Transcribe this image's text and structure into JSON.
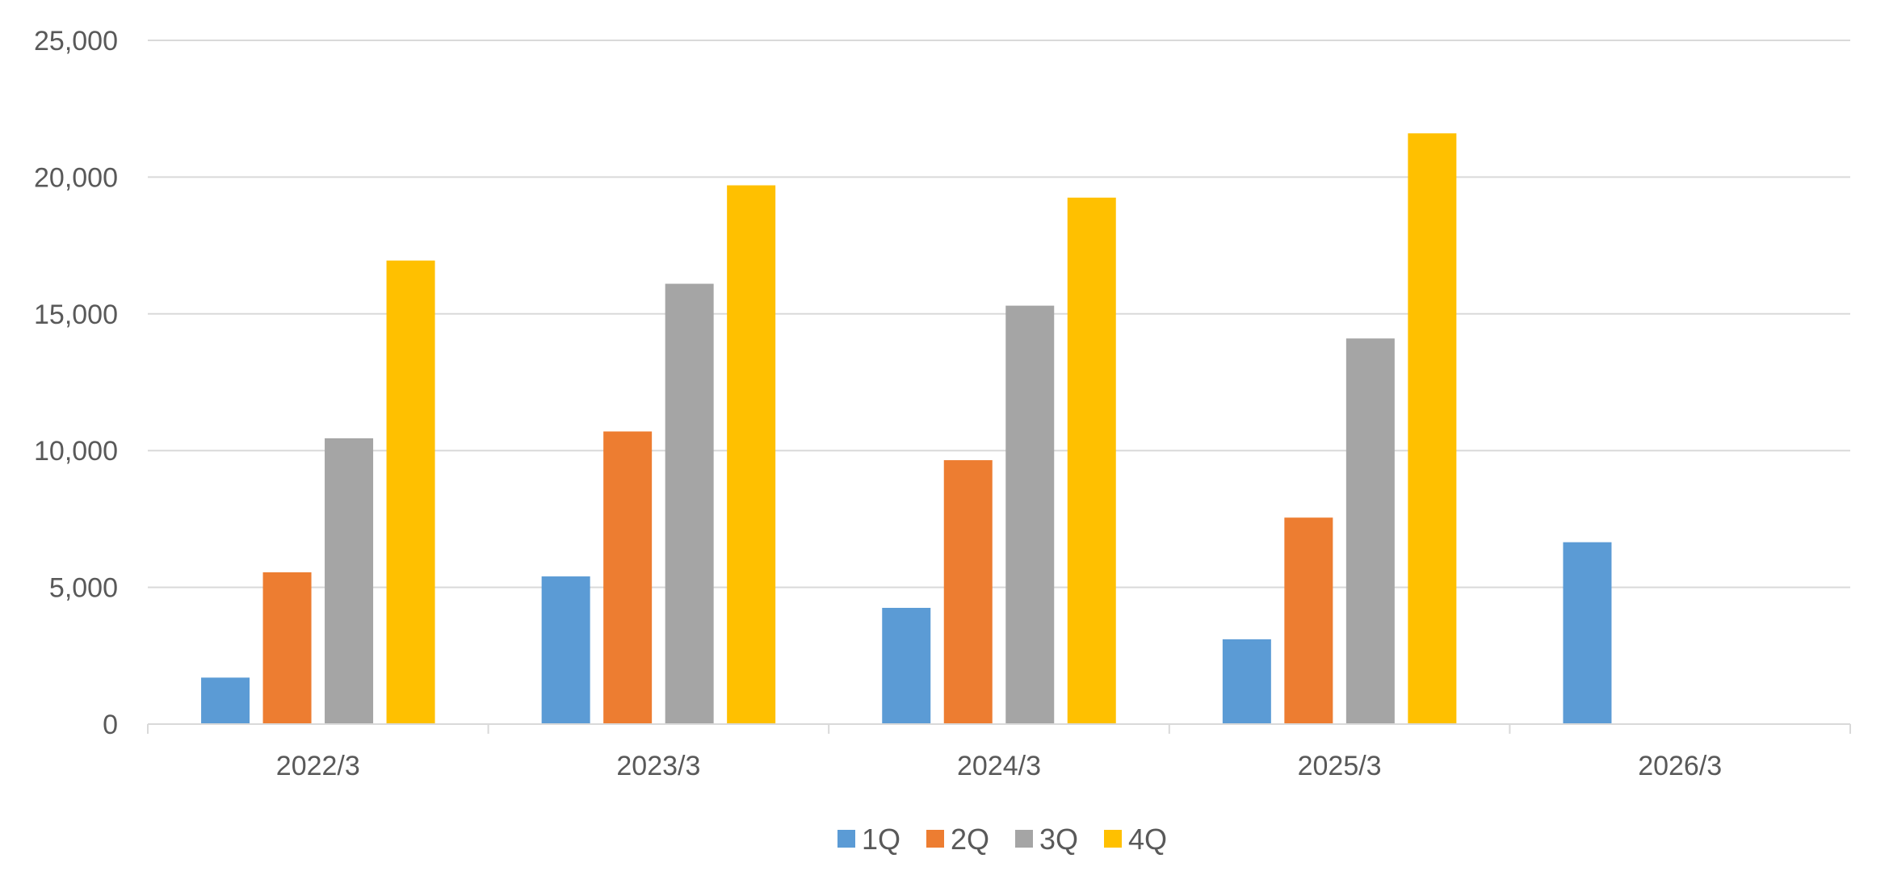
{
  "chart_data": {
    "type": "bar",
    "categories": [
      "2022/3",
      "2023/3",
      "2024/3",
      "2025/3",
      "2026/3"
    ],
    "series": [
      {
        "name": "1Q",
        "color": "#5B9BD5",
        "values": [
          1700,
          5400,
          4250,
          3100,
          6650
        ]
      },
      {
        "name": "2Q",
        "color": "#ED7D31",
        "values": [
          5550,
          10700,
          9650,
          7550,
          null
        ]
      },
      {
        "name": "3Q",
        "color": "#A5A5A5",
        "values": [
          10450,
          16100,
          15300,
          14100,
          null
        ]
      },
      {
        "name": "4Q",
        "color": "#FFC000",
        "values": [
          16950,
          19700,
          19250,
          21600,
          null
        ]
      }
    ],
    "ylim": [
      0,
      25000
    ],
    "yticks": [
      0,
      5000,
      10000,
      15000,
      20000,
      25000
    ],
    "ytick_labels": [
      "0",
      "5,000",
      "10,000",
      "15,000",
      "20,000",
      "25,000"
    ],
    "grid": true,
    "legend_position": "bottom"
  }
}
